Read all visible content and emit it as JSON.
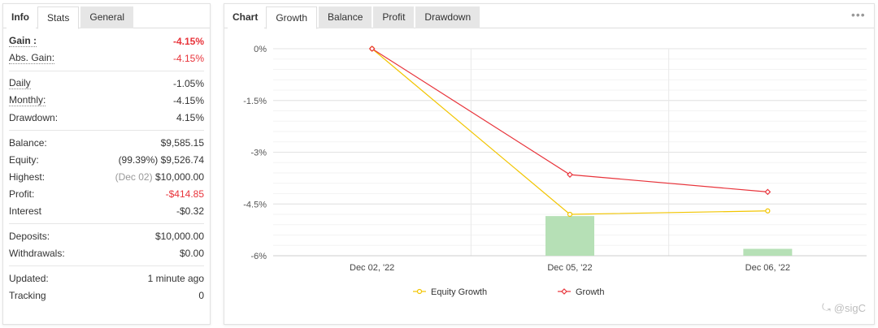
{
  "stats_tabs": [
    {
      "label": "Info"
    },
    {
      "label": "Stats"
    },
    {
      "label": "General"
    }
  ],
  "stats": {
    "gain": {
      "label": "Gain :",
      "value": "-4.15%"
    },
    "abs_gain": {
      "label": "Abs. Gain:",
      "value": "-4.15%"
    },
    "daily": {
      "label": "Daily",
      "value": "-1.05%"
    },
    "monthly": {
      "label": "Monthly:",
      "value": "-4.15%"
    },
    "drawdown": {
      "label": "Drawdown:",
      "value": "4.15%"
    },
    "balance": {
      "label": "Balance:",
      "value": "$9,585.15"
    },
    "equity": {
      "label": "Equity:",
      "prefix": "(99.39%)",
      "value": "$9,526.74"
    },
    "highest": {
      "label": "Highest:",
      "prefix": "(Dec 02)",
      "value": "$10,000.00"
    },
    "profit": {
      "label": "Profit:",
      "value": "-$414.85"
    },
    "interest": {
      "label": "Interest",
      "value": "-$0.32"
    },
    "deposits": {
      "label": "Deposits:",
      "value": "$10,000.00"
    },
    "withdrawals": {
      "label": "Withdrawals:",
      "value": "$0.00"
    },
    "updated": {
      "label": "Updated:",
      "value": "1 minute ago"
    },
    "tracking": {
      "label": "Tracking",
      "value": "0"
    }
  },
  "chart_tabs": [
    {
      "label": "Chart"
    },
    {
      "label": "Growth"
    },
    {
      "label": "Balance"
    },
    {
      "label": "Profit"
    },
    {
      "label": "Drawdown"
    }
  ],
  "more_icon": "more-dots-icon",
  "watermark": {
    "text": "@sigC"
  },
  "colors": {
    "negative": "#e8333a",
    "equity_growth": "#f2c500",
    "growth": "#e8333a",
    "bar": "#b6e0b6",
    "grid": "#e9e9e9"
  },
  "chart_data": {
    "type": "line",
    "categories": [
      "Dec 02, '22",
      "Dec 05, '22",
      "Dec 06, '22"
    ],
    "y_tick_labels": [
      "0%",
      "-1.5%",
      "-3%",
      "-4.5%",
      "-6%"
    ],
    "y_ticks": [
      0,
      -1.5,
      -3,
      -4.5,
      -6
    ],
    "ylim": [
      -6,
      0
    ],
    "series": [
      {
        "name": "Equity Growth",
        "color": "#f2c500",
        "values": [
          0,
          -4.8,
          -4.7
        ]
      },
      {
        "name": "Growth",
        "color": "#e8333a",
        "values": [
          0,
          -3.65,
          -4.15
        ]
      }
    ],
    "bars": {
      "values": [
        0,
        -1.15,
        -0.2
      ],
      "color": "#b6e0b6"
    },
    "grid": true,
    "legend_position": "bottom"
  }
}
